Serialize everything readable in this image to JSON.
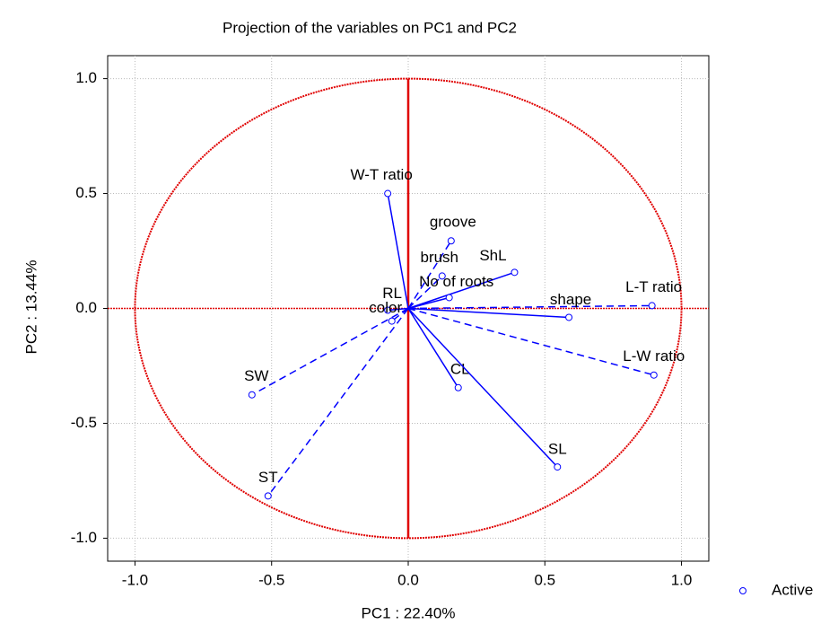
{
  "chart_data": {
    "type": "scatter",
    "title": "Projection of the variables on PC1 and PC2",
    "x_label": "PC1 : 22.40%",
    "y_label": "PC2 : 13.44%",
    "xlim": [
      -1.1,
      1.1
    ],
    "ylim": [
      -1.1,
      1.1
    ],
    "xticks": [
      {
        "value": -1.0,
        "label": "-1.0"
      },
      {
        "value": -0.5,
        "label": "-0.5"
      },
      {
        "value": 0.0,
        "label": "0.0"
      },
      {
        "value": 0.5,
        "label": "0.5"
      },
      {
        "value": 1.0,
        "label": "1.0"
      }
    ],
    "yticks": [
      {
        "value": -1.0,
        "label": "-1.0"
      },
      {
        "value": -0.5,
        "label": "-0.5"
      },
      {
        "value": 0.0,
        "label": "0.0"
      },
      {
        "value": 0.5,
        "label": "0.5"
      },
      {
        "value": 1.0,
        "label": "1.0"
      }
    ],
    "grid": true,
    "unit_circle": true,
    "legend_position": "bottom-right",
    "series": [
      {
        "name": "Active",
        "color": "#0000ff",
        "labels": [
          "W-T ratio",
          "groove",
          "brush",
          "ShL",
          "No of roots",
          "RL",
          "color",
          "L-T ratio",
          "shape",
          "L-W ratio",
          "CL",
          "SL",
          "SW",
          "ST"
        ],
        "x": [
          -0.075,
          0.157,
          0.124,
          0.389,
          0.15,
          -0.075,
          -0.06,
          0.892,
          0.588,
          0.899,
          0.183,
          0.546,
          -0.572,
          -0.513
        ],
        "values": [
          0.5,
          0.294,
          0.141,
          0.157,
          0.047,
          -0.008,
          -0.055,
          0.012,
          -0.039,
          -0.29,
          -0.345,
          -0.69,
          -0.376,
          -0.816
        ],
        "line_styles": [
          "solid",
          "dashed",
          "dashed",
          "solid",
          "solid",
          "solid",
          "dashed",
          "dashed",
          "solid",
          "dashed",
          "solid",
          "solid",
          "dashed",
          "dashed"
        ]
      }
    ]
  }
}
